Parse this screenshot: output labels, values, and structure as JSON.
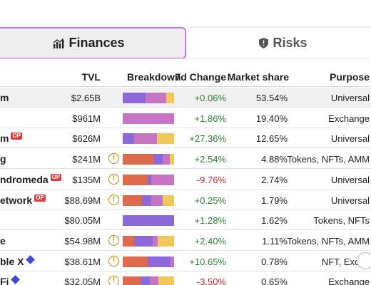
{
  "tabs": {
    "finances": {
      "label": "Finances",
      "icon": "bar-chart-icon"
    },
    "risks": {
      "label": "Risks",
      "icon": "shield-icon"
    }
  },
  "header": {
    "tvl": "TVL",
    "breakdown": "Breakdown",
    "change": "7d Change",
    "share": "Market share",
    "purpose": "Purpose"
  },
  "colors": {
    "blue": "#8c68d8",
    "pink": "#c774c2",
    "yellow": "#f2c85a",
    "orange": "#dd6a4a",
    "positive": "#2e7d32",
    "negative": "#c62828"
  },
  "rows": [
    {
      "name": "m",
      "badge": "",
      "tvl": "$2.65B",
      "warn": false,
      "breakdown": [
        [
          "blue",
          0.45
        ],
        [
          "pink",
          0.4
        ],
        [
          "yellow",
          0.15
        ]
      ],
      "change": "+0.06%",
      "dir": "pos",
      "share": "53.54%",
      "purpose": "Universal",
      "highlight": true
    },
    {
      "name": "",
      "badge": "",
      "tvl": "$961M",
      "warn": false,
      "breakdown": [
        [
          "pink",
          1.0
        ]
      ],
      "change": "+1.86%",
      "dir": "pos",
      "share": "19.40%",
      "purpose": "Exchange",
      "highlight": false
    },
    {
      "name": "m",
      "badge": "OP",
      "tvl": "$626M",
      "warn": false,
      "breakdown": [
        [
          "blue",
          0.22
        ],
        [
          "pink",
          0.45
        ],
        [
          "yellow",
          0.33
        ]
      ],
      "change": "+27.36%",
      "dir": "pos",
      "share": "12.65%",
      "purpose": "Universal",
      "highlight": false
    },
    {
      "name": "g",
      "badge": "",
      "tvl": "$241M",
      "warn": true,
      "breakdown": [
        [
          "orange",
          0.6
        ],
        [
          "blue",
          0.18
        ],
        [
          "pink",
          0.14
        ],
        [
          "yellow",
          0.08
        ]
      ],
      "change": "+2.54%",
      "dir": "pos",
      "share": "4.88%",
      "purpose": "Tokens, NFTs, AMM",
      "highlight": false
    },
    {
      "name": "ndromeda",
      "badge": "OP",
      "tvl": "$135M",
      "warn": true,
      "breakdown": [
        [
          "orange",
          0.48
        ],
        [
          "blue",
          0.08
        ],
        [
          "pink",
          0.44
        ]
      ],
      "change": "-9.76%",
      "dir": "neg",
      "share": "2.74%",
      "purpose": "Universal",
      "highlight": false
    },
    {
      "name": "etwork",
      "badge": "OP",
      "tvl": "$88.69M",
      "warn": true,
      "breakdown": [
        [
          "orange",
          0.38
        ],
        [
          "blue",
          0.18
        ],
        [
          "pink",
          0.22
        ],
        [
          "yellow",
          0.22
        ]
      ],
      "change": "+0.25%",
      "dir": "pos",
      "share": "1.79%",
      "purpose": "Universal",
      "highlight": false
    },
    {
      "name": "",
      "badge": "",
      "tvl": "$80.05M",
      "warn": false,
      "breakdown": [
        [
          "blue",
          1.0
        ]
      ],
      "change": "+1.28%",
      "dir": "pos",
      "share": "1.62%",
      "purpose": "Tokens, NFTs",
      "highlight": false
    },
    {
      "name": "e",
      "badge": "",
      "tvl": "$54.98M",
      "warn": true,
      "breakdown": [
        [
          "orange",
          0.22
        ],
        [
          "blue",
          0.36
        ],
        [
          "pink",
          0.1
        ],
        [
          "yellow",
          0.32
        ]
      ],
      "change": "+2.40%",
      "dir": "pos",
      "share": "1.11%",
      "purpose": "Tokens, NFTs, AMM",
      "highlight": false
    },
    {
      "name": "ble X",
      "badge": "DIA",
      "tvl": "$38.61M",
      "warn": true,
      "breakdown": [
        [
          "orange",
          0.48
        ],
        [
          "blue",
          0.45
        ],
        [
          "pink",
          0.07
        ]
      ],
      "change": "+10.65%",
      "dir": "pos",
      "share": "0.78%",
      "purpose": "NFT, Excha",
      "highlight": false
    },
    {
      "name": "Fi",
      "badge": "DIA",
      "tvl": "$32.05M",
      "warn": true,
      "breakdown": [
        [
          "orange",
          0.35
        ],
        [
          "blue",
          0.18
        ],
        [
          "pink",
          0.17
        ],
        [
          "yellow",
          0.3
        ]
      ],
      "change": "-3.50%",
      "dir": "neg",
      "share": "0.65%",
      "purpose": "Exchange",
      "highlight": false
    }
  ]
}
